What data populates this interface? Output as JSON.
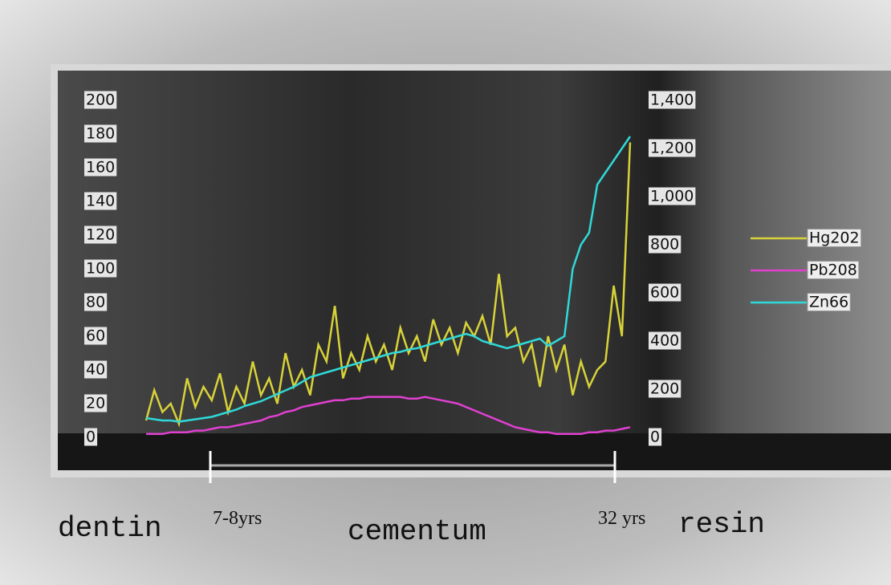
{
  "chart_data": {
    "type": "line",
    "ylim": [
      0,
      200
    ],
    "yticks": [
      0,
      20,
      40,
      60,
      80,
      100,
      120,
      140,
      160,
      180,
      200
    ],
    "y2lim": [
      0,
      1400
    ],
    "y2ticks": [
      0,
      200,
      400,
      600,
      800,
      {
        "value": 1000,
        "label": "1,000"
      },
      {
        "value": 1200,
        "label": "1,200"
      },
      {
        "value": 1400,
        "label": "1,400"
      }
    ],
    "series": [
      {
        "name": "Hg202",
        "color": "#d8d23a",
        "values": [
          10,
          28,
          15,
          20,
          8,
          35,
          18,
          30,
          22,
          38,
          15,
          30,
          20,
          45,
          25,
          35,
          20,
          50,
          30,
          40,
          25,
          55,
          45,
          78,
          35,
          50,
          40,
          60,
          45,
          55,
          40,
          65,
          50,
          60,
          45,
          70,
          55,
          65,
          50,
          68,
          60,
          72,
          55,
          97,
          60,
          65,
          45,
          55,
          30,
          60,
          40,
          55,
          25,
          45,
          30,
          40,
          45,
          90,
          60,
          175
        ]
      },
      {
        "name": "Pb208",
        "color": "#e040d0",
        "values": [
          2,
          2,
          2,
          3,
          3,
          3,
          4,
          4,
          5,
          6,
          6,
          7,
          8,
          9,
          10,
          12,
          13,
          15,
          16,
          18,
          19,
          20,
          21,
          22,
          22,
          23,
          23,
          24,
          24,
          24,
          24,
          24,
          23,
          23,
          24,
          23,
          22,
          21,
          20,
          18,
          16,
          14,
          12,
          10,
          8,
          6,
          5,
          4,
          3,
          3,
          2,
          2,
          2,
          2,
          3,
          3,
          4,
          4,
          5,
          6
        ]
      },
      {
        "name": "Zn66",
        "color": "#30d8d8",
        "axis": "y2",
        "values": [
          80,
          75,
          70,
          70,
          65,
          70,
          75,
          80,
          85,
          95,
          105,
          115,
          130,
          140,
          150,
          165,
          180,
          195,
          210,
          230,
          250,
          260,
          270,
          280,
          290,
          300,
          310,
          320,
          330,
          340,
          350,
          355,
          365,
          370,
          380,
          390,
          400,
          410,
          420,
          430,
          420,
          400,
          390,
          380,
          370,
          380,
          390,
          400,
          410,
          380,
          400,
          420,
          700,
          800,
          850,
          1050,
          1100,
          1150,
          1200,
          1250
        ]
      }
    ],
    "annotations": {
      "dentin": "dentin",
      "start_age": "7-8yrs",
      "cementum": "cementum",
      "end_age": "32 yrs",
      "resin": "resin"
    }
  }
}
